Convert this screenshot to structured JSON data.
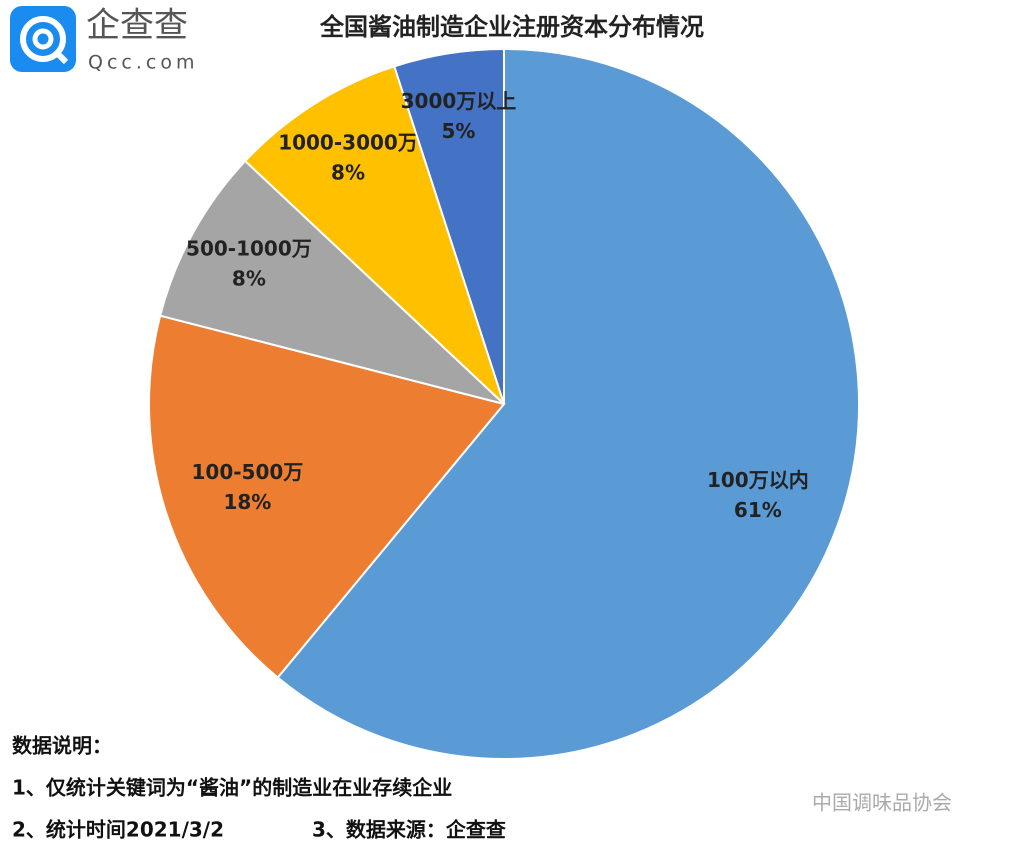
{
  "logo": {
    "name": "企查查",
    "domain": "Qcc.com"
  },
  "chart_data": {
    "type": "pie",
    "title": "全国酱油制造企业注册资本分布情况",
    "categories": [
      "100万以内",
      "100-500万",
      "500-1000万",
      "1000-3000万",
      "3000万以上"
    ],
    "values": [
      61,
      18,
      8,
      8,
      5
    ],
    "value_labels": [
      "61%",
      "18%",
      "8%",
      "8%",
      "5%"
    ],
    "colors": [
      "#5b9bd5",
      "#ed7d31",
      "#a5a5a5",
      "#ffc000",
      "#4472c4"
    ]
  },
  "notes": {
    "heading": "数据说明：",
    "lines": [
      "1、仅统计关键词为“酱油”的制造业在业存续企业",
      "2、统计时间2021/3/2",
      "3、数据来源：企查查"
    ]
  },
  "watermark": "中国调味品协会"
}
